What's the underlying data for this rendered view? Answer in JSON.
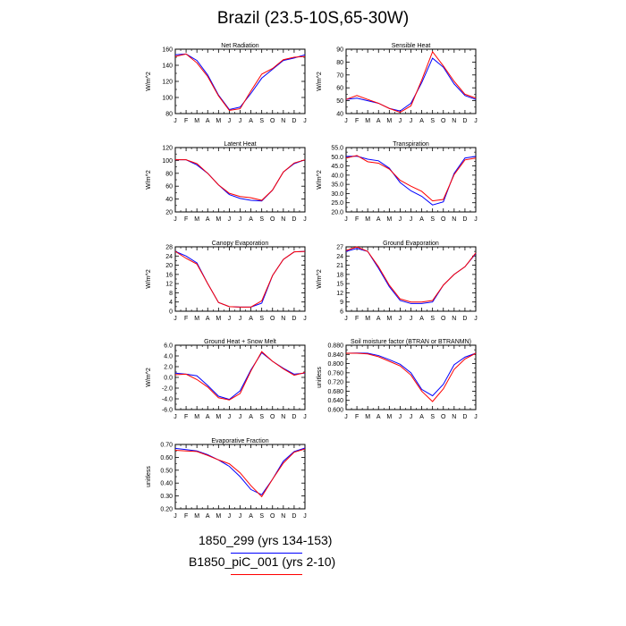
{
  "title": "Brazil (23.5-10S,65-30W)",
  "legend": {
    "entries": [
      {
        "label": "1850_299 (yrs 134-153)",
        "color": "#0000ff"
      },
      {
        "label": "B1850_piC_001 (yrs 2-10)",
        "color": "#ff0000"
      }
    ]
  },
  "chart_data": [
    {
      "type": "line",
      "title": "Net Radiation",
      "ylabel": "W/m^2",
      "categories": [
        "J",
        "F",
        "M",
        "A",
        "M",
        "J",
        "J",
        "A",
        "S",
        "O",
        "N",
        "D",
        "J"
      ],
      "ylim": [
        80,
        160
      ],
      "yticks": [
        80,
        100,
        120,
        140,
        160
      ],
      "ytick_labels": [
        "80",
        "100",
        "120",
        "140",
        "160"
      ],
      "series": [
        {
          "color": "#0000ff",
          "values": [
            153,
            154,
            146,
            128,
            103,
            85,
            88,
            105,
            124,
            135,
            146,
            149,
            153
          ]
        },
        {
          "color": "#ff0000",
          "values": [
            151,
            154,
            143,
            126,
            102,
            84,
            86,
            108,
            129,
            136,
            147,
            150,
            151
          ]
        }
      ]
    },
    {
      "type": "line",
      "title": "Sensible Heat",
      "ylabel": "W/m^2",
      "categories": [
        "J",
        "F",
        "M",
        "A",
        "M",
        "J",
        "J",
        "A",
        "S",
        "O",
        "N",
        "D",
        "J"
      ],
      "ylim": [
        40,
        90
      ],
      "yticks": [
        40,
        50,
        60,
        70,
        80,
        90
      ],
      "ytick_labels": [
        "40",
        "50",
        "60",
        "70",
        "80",
        "90"
      ],
      "series": [
        {
          "color": "#0000ff",
          "values": [
            51,
            52,
            50,
            48,
            44,
            42,
            48,
            64,
            83,
            76,
            63,
            54,
            51
          ]
        },
        {
          "color": "#ff0000",
          "values": [
            51,
            54,
            51,
            48,
            44,
            41,
            46,
            66,
            88,
            77,
            65,
            55,
            52
          ]
        }
      ]
    },
    {
      "type": "line",
      "title": "Latent Heat",
      "ylabel": "W/m^2",
      "categories": [
        "J",
        "F",
        "M",
        "A",
        "M",
        "J",
        "J",
        "A",
        "S",
        "O",
        "N",
        "D",
        "J"
      ],
      "ylim": [
        20,
        120
      ],
      "yticks": [
        20,
        40,
        60,
        80,
        100,
        120
      ],
      "ytick_labels": [
        "20",
        "40",
        "60",
        "80",
        "100",
        "120"
      ],
      "series": [
        {
          "color": "#0000ff",
          "values": [
            101,
            101,
            93,
            80,
            62,
            47,
            41,
            38,
            37,
            54,
            82,
            95,
            101
          ]
        },
        {
          "color": "#ff0000",
          "values": [
            101,
            101,
            95,
            80,
            62,
            49,
            44,
            42,
            38,
            54,
            82,
            96,
            101
          ]
        }
      ]
    },
    {
      "type": "line",
      "title": "Transpiration",
      "ylabel": "W/m^2",
      "categories": [
        "J",
        "F",
        "M",
        "A",
        "M",
        "J",
        "J",
        "A",
        "S",
        "O",
        "N",
        "D",
        "J"
      ],
      "ylim": [
        20,
        55
      ],
      "yticks": [
        20,
        25,
        30,
        35,
        40,
        45,
        50,
        55
      ],
      "ytick_labels": [
        "20.0",
        "25.0",
        "30.0",
        "35.0",
        "40.0",
        "45.0",
        "50.0",
        "55.0"
      ],
      "series": [
        {
          "color": "#0000ff",
          "values": [
            50.2,
            50.3,
            48.7,
            47.8,
            43.8,
            36.0,
            31.5,
            28.5,
            23.8,
            25.5,
            41.0,
            49.3,
            50.2
          ]
        },
        {
          "color": "#ff0000",
          "values": [
            49.3,
            50.7,
            47.3,
            46.5,
            43.3,
            37.2,
            34.0,
            31.2,
            26.0,
            26.8,
            40.3,
            48.3,
            49.3
          ]
        }
      ]
    },
    {
      "type": "line",
      "title": "Canopy Evaporation",
      "ylabel": "W/m^2",
      "categories": [
        "J",
        "F",
        "M",
        "A",
        "M",
        "J",
        "J",
        "A",
        "S",
        "O",
        "N",
        "D",
        "J"
      ],
      "ylim": [
        0,
        28
      ],
      "yticks": [
        0,
        4,
        8,
        12,
        16,
        20,
        24,
        28
      ],
      "ytick_labels": [
        "0",
        "4",
        "8",
        "12",
        "16",
        "20",
        "24",
        "28"
      ],
      "series": [
        {
          "color": "#0000ff",
          "values": [
            26,
            24,
            21,
            12,
            3.8,
            2,
            1.8,
            1.8,
            3.5,
            15.5,
            22.5,
            25.8,
            26
          ]
        },
        {
          "color": "#ff0000",
          "values": [
            26,
            23,
            20.5,
            12,
            3.8,
            2,
            1.8,
            1.8,
            4.5,
            15.5,
            22.5,
            25.8,
            26
          ]
        }
      ]
    },
    {
      "type": "line",
      "title": "Ground Evaporation",
      "ylabel": "W/m^2",
      "categories": [
        "J",
        "F",
        "M",
        "A",
        "M",
        "J",
        "J",
        "A",
        "S",
        "O",
        "N",
        "D",
        "J"
      ],
      "ylim": [
        6,
        27
      ],
      "yticks": [
        6,
        9,
        12,
        15,
        18,
        21,
        24,
        27
      ],
      "ytick_labels": [
        "6",
        "9",
        "12",
        "15",
        "18",
        "21",
        "24",
        "27"
      ],
      "series": [
        {
          "color": "#0000ff",
          "values": [
            25.5,
            26.5,
            25.5,
            20,
            14,
            9.5,
            8.5,
            8.5,
            9,
            14.5,
            18,
            20.5,
            24.8
          ]
        },
        {
          "color": "#ff0000",
          "values": [
            25.8,
            27,
            25.5,
            20.5,
            14.5,
            10,
            9,
            9,
            9.5,
            14.5,
            18,
            20.5,
            25
          ]
        }
      ]
    },
    {
      "type": "line",
      "title": "Ground Heat + Snow Melt",
      "ylabel": "W/m^2",
      "categories": [
        "J",
        "F",
        "M",
        "A",
        "M",
        "J",
        "J",
        "A",
        "S",
        "O",
        "N",
        "D",
        "J"
      ],
      "ylim": [
        -6,
        6
      ],
      "yticks": [
        -6,
        -4,
        -2,
        0,
        2,
        4,
        6
      ],
      "ytick_labels": [
        "-6.0",
        "-4.0",
        "-2.0",
        "0.0",
        "2.0",
        "4.0",
        "6.0"
      ],
      "series": [
        {
          "color": "#0000ff",
          "values": [
            0.8,
            0.6,
            0.3,
            -1.5,
            -3.5,
            -4.1,
            -2.5,
            1.4,
            4.6,
            3.0,
            1.7,
            0.6,
            0.8
          ]
        },
        {
          "color": "#ff0000",
          "values": [
            0.5,
            0.6,
            -0.4,
            -1.8,
            -3.8,
            -4.2,
            -3.0,
            1.2,
            4.8,
            3.0,
            1.6,
            0.4,
            0.9
          ]
        }
      ]
    },
    {
      "type": "line",
      "title": "Soil moisture factor (BTRAN or BTRANMN)",
      "ylabel": "unitless",
      "categories": [
        "J",
        "F",
        "M",
        "A",
        "M",
        "J",
        "J",
        "A",
        "S",
        "O",
        "N",
        "D",
        "J"
      ],
      "ylim": [
        0.6,
        0.88
      ],
      "yticks": [
        0.6,
        0.64,
        0.68,
        0.72,
        0.76,
        0.8,
        0.84,
        0.88
      ],
      "ytick_labels": [
        "0.600",
        "0.640",
        "0.680",
        "0.720",
        "0.760",
        "0.800",
        "0.840",
        "0.880"
      ],
      "series": [
        {
          "color": "#0000ff",
          "values": [
            0.845,
            0.846,
            0.845,
            0.835,
            0.817,
            0.797,
            0.76,
            0.688,
            0.66,
            0.71,
            0.795,
            0.828,
            0.845
          ]
        },
        {
          "color": "#ff0000",
          "values": [
            0.845,
            0.845,
            0.842,
            0.83,
            0.81,
            0.79,
            0.75,
            0.68,
            0.635,
            0.69,
            0.775,
            0.82,
            0.845
          ]
        }
      ]
    },
    {
      "type": "line",
      "title": "Evaporative Fraction",
      "ylabel": "unitless",
      "categories": [
        "J",
        "F",
        "M",
        "A",
        "M",
        "J",
        "J",
        "A",
        "S",
        "O",
        "N",
        "D",
        "J"
      ],
      "ylim": [
        0.2,
        0.7
      ],
      "yticks": [
        0.2,
        0.3,
        0.4,
        0.5,
        0.6,
        0.7
      ],
      "ytick_labels": [
        "0.20",
        "0.30",
        "0.40",
        "0.50",
        "0.60",
        "0.70"
      ],
      "series": [
        {
          "color": "#0000ff",
          "values": [
            0.67,
            0.66,
            0.65,
            0.62,
            0.58,
            0.53,
            0.45,
            0.35,
            0.31,
            0.43,
            0.57,
            0.645,
            0.672
          ]
        },
        {
          "color": "#ff0000",
          "values": [
            0.655,
            0.65,
            0.645,
            0.615,
            0.58,
            0.55,
            0.48,
            0.38,
            0.295,
            0.43,
            0.555,
            0.64,
            0.665
          ]
        }
      ]
    }
  ]
}
